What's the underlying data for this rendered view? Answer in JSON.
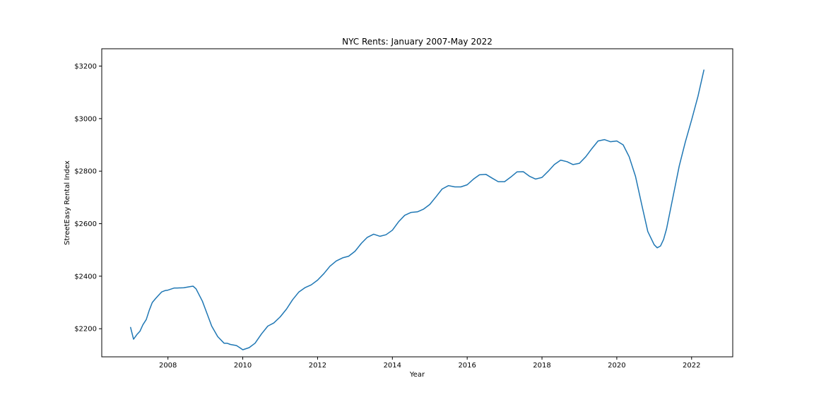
{
  "chart_data": {
    "type": "line",
    "title": "NYC Rents: January 2007-May 2022",
    "xlabel": "Year",
    "ylabel": "StreetEasy Rental Index",
    "xlim": [
      2006.23,
      2023.1
    ],
    "ylim": [
      2093,
      3266
    ],
    "x_ticks": [
      2008,
      2010,
      2012,
      2014,
      2016,
      2018,
      2020,
      2022
    ],
    "x_tick_labels": [
      "2008",
      "2010",
      "2012",
      "2014",
      "2016",
      "2018",
      "2020",
      "2022"
    ],
    "y_ticks": [
      2200,
      2400,
      2600,
      2800,
      3000,
      3200
    ],
    "y_tick_labels": [
      "$2200",
      "$2400",
      "$2600",
      "$2800",
      "$3000",
      "$3200"
    ],
    "grid": false,
    "line_color": "#1f77b4",
    "series": [
      {
        "x": [
          2007.0,
          2007.08,
          2007.17,
          2007.25,
          2007.33,
          2007.42,
          2007.5,
          2007.58,
          2007.67,
          2007.75,
          2007.83,
          2007.92,
          2008.0,
          2008.17,
          2008.25,
          2008.42,
          2008.58,
          2008.67,
          2008.75,
          2008.92,
          2009.0,
          2009.17,
          2009.33,
          2009.5,
          2009.58,
          2009.67,
          2009.83,
          2009.92,
          2010.0,
          2010.17,
          2010.33,
          2010.5,
          2010.67,
          2010.83,
          2011.0,
          2011.17,
          2011.33,
          2011.5,
          2011.67,
          2011.83,
          2012.0,
          2012.17,
          2012.33,
          2012.5,
          2012.67,
          2012.83,
          2013.0,
          2013.17,
          2013.33,
          2013.5,
          2013.67,
          2013.83,
          2014.0,
          2014.17,
          2014.33,
          2014.5,
          2014.67,
          2014.83,
          2015.0,
          2015.17,
          2015.33,
          2015.5,
          2015.67,
          2015.83,
          2016.0,
          2016.17,
          2016.33,
          2016.5,
          2016.67,
          2016.83,
          2017.0,
          2017.17,
          2017.33,
          2017.5,
          2017.67,
          2017.83,
          2018.0,
          2018.17,
          2018.33,
          2018.5,
          2018.67,
          2018.83,
          2019.0,
          2019.17,
          2019.33,
          2019.5,
          2019.67,
          2019.83,
          2020.0,
          2020.17,
          2020.33,
          2020.5,
          2020.67,
          2020.83,
          2021.0,
          2021.08,
          2021.17,
          2021.25,
          2021.33,
          2021.5,
          2021.67,
          2021.83,
          2022.0,
          2022.17,
          2022.33
        ],
        "y": [
          2205,
          2160,
          2178,
          2190,
          2215,
          2235,
          2270,
          2300,
          2315,
          2328,
          2340,
          2345,
          2347,
          2355,
          2355,
          2356,
          2360,
          2362,
          2352,
          2305,
          2275,
          2210,
          2170,
          2145,
          2145,
          2140,
          2136,
          2128,
          2120,
          2128,
          2145,
          2180,
          2210,
          2222,
          2245,
          2275,
          2310,
          2340,
          2357,
          2367,
          2385,
          2410,
          2438,
          2458,
          2470,
          2476,
          2495,
          2525,
          2548,
          2560,
          2552,
          2558,
          2575,
          2608,
          2632,
          2643,
          2645,
          2655,
          2673,
          2703,
          2732,
          2745,
          2740,
          2740,
          2748,
          2770,
          2786,
          2788,
          2773,
          2760,
          2760,
          2778,
          2797,
          2798,
          2780,
          2770,
          2776,
          2800,
          2825,
          2842,
          2836,
          2825,
          2830,
          2855,
          2885,
          2915,
          2920,
          2912,
          2915,
          2900,
          2855,
          2780,
          2670,
          2570,
          2520,
          2508,
          2515,
          2540,
          2580,
          2700,
          2820,
          2910,
          2995,
          3085,
          3185
        ]
      }
    ]
  }
}
